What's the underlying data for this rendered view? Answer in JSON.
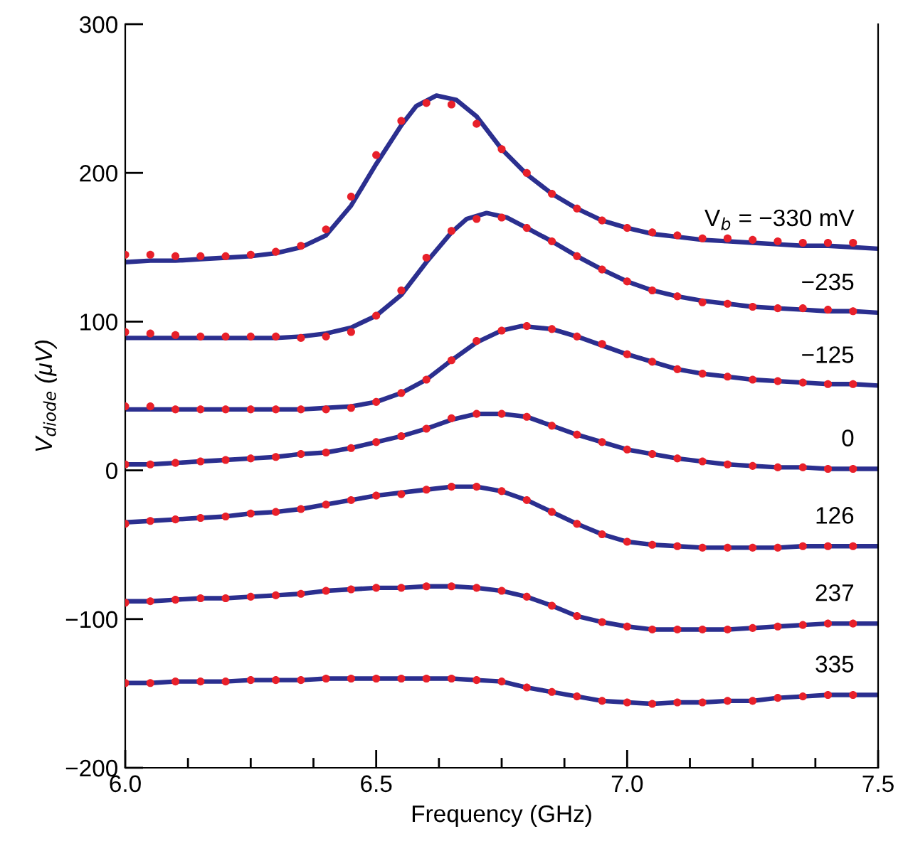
{
  "chart_data": {
    "type": "scatter",
    "xlabel": "Frequency (GHz)",
    "ylabel": "V$_{diode}$ (μV)",
    "xlim": [
      6.0,
      7.5
    ],
    "ylim": [
      -200,
      300
    ],
    "xticks": [
      {
        "value": 6.0,
        "label": "6.0"
      },
      {
        "value": 6.125,
        "label": null
      },
      {
        "value": 6.25,
        "label": null
      },
      {
        "value": 6.375,
        "label": null
      },
      {
        "value": 6.5,
        "label": "6.5"
      },
      {
        "value": 6.625,
        "label": null
      },
      {
        "value": 6.75,
        "label": null
      },
      {
        "value": 6.875,
        "label": null
      },
      {
        "value": 7.0,
        "label": "7.0"
      },
      {
        "value": 7.125,
        "label": null
      },
      {
        "value": 7.25,
        "label": null
      },
      {
        "value": 7.375,
        "label": null
      },
      {
        "value": 7.5,
        "label": "7.5"
      }
    ],
    "yticks": [
      {
        "value": -200,
        "label": "−200"
      },
      {
        "value": -100,
        "label": "−100"
      },
      0,
      100,
      200,
      300
    ],
    "grid": false,
    "legend": false,
    "marker": "circle",
    "x": [
      6.0,
      6.05,
      6.1,
      6.15,
      6.2,
      6.25,
      6.3,
      6.35,
      6.4,
      6.45,
      6.5,
      6.55,
      6.6,
      6.65,
      6.7,
      6.75,
      6.8,
      6.85,
      6.9,
      6.95,
      7.0,
      7.05,
      7.1,
      7.15,
      7.2,
      7.25,
      7.3,
      7.35,
      7.4,
      7.45
    ],
    "series": [
      {
        "color": "#e8202a",
        "values": [
          145,
          145,
          144,
          144,
          144,
          145,
          147,
          151,
          162,
          184,
          212,
          235,
          247,
          246,
          233,
          216,
          200,
          186,
          176,
          168,
          163,
          160,
          158,
          156,
          156,
          155,
          154,
          153,
          153,
          153
        ]
      },
      {
        "color": "#e8202a",
        "values": [
          93,
          92,
          91,
          90,
          90,
          90,
          90,
          89,
          90,
          93,
          104,
          121,
          143,
          161,
          169,
          170,
          163,
          154,
          144,
          135,
          127,
          121,
          117,
          113,
          112,
          110,
          109,
          109,
          108,
          107
        ]
      },
      {
        "color": "#e8202a",
        "values": [
          43,
          43,
          41,
          41,
          41,
          41,
          41,
          41,
          41,
          42,
          46,
          52,
          61,
          74,
          87,
          94,
          97,
          95,
          90,
          85,
          78,
          73,
          68,
          65,
          63,
          61,
          60,
          59,
          58,
          58
        ]
      },
      {
        "color": "#e8202a",
        "values": [
          4,
          4,
          5,
          6,
          7,
          8,
          9,
          11,
          12,
          15,
          19,
          23,
          28,
          35,
          38,
          38,
          36,
          30,
          24,
          19,
          14,
          11,
          8,
          6,
          4,
          3,
          2,
          2,
          1,
          1
        ]
      },
      {
        "color": "#e8202a",
        "values": [
          -36,
          -34,
          -33,
          -32,
          -31,
          -29,
          -28,
          -26,
          -23,
          -20,
          -17,
          -16,
          -13,
          -11,
          -11,
          -14,
          -20,
          -28,
          -36,
          -43,
          -48,
          -50,
          -51,
          -52,
          -52,
          -52,
          -52,
          -51,
          -51,
          -51
        ]
      },
      {
        "color": "#e8202a",
        "values": [
          -89,
          -88,
          -87,
          -86,
          -86,
          -85,
          -84,
          -83,
          -81,
          -80,
          -79,
          -79,
          -78,
          -78,
          -79,
          -81,
          -85,
          -91,
          -98,
          -102,
          -105,
          -107,
          -107,
          -107,
          -107,
          -106,
          -105,
          -104,
          -103,
          -103
        ]
      },
      {
        "color": "#e8202a",
        "values": [
          -143,
          -143,
          -142,
          -142,
          -142,
          -141,
          -141,
          -141,
          -140,
          -140,
          -140,
          -140,
          -140,
          -140,
          -141,
          -142,
          -146,
          -149,
          -152,
          -155,
          -156,
          -157,
          -156,
          -156,
          -155,
          -155,
          -153,
          -152,
          -151,
          -151
        ]
      },
      {
        "type": "line",
        "marker": "none",
        "name": "V$_{b}$ = −330 mV",
        "color": "#2b2f8f",
        "x": [
          6.0,
          6.05,
          6.1,
          6.15,
          6.2,
          6.25,
          6.3,
          6.35,
          6.4,
          6.45,
          6.5,
          6.55,
          6.58,
          6.62,
          6.66,
          6.7,
          6.75,
          6.8,
          6.85,
          6.9,
          6.95,
          7.0,
          7.05,
          7.1,
          7.15,
          7.2,
          7.25,
          7.3,
          7.35,
          7.4,
          7.45,
          7.5
        ],
        "values": [
          140,
          141,
          141,
          142,
          143,
          144,
          146,
          150,
          158,
          178,
          206,
          232,
          245,
          252,
          249,
          238,
          216,
          199,
          186,
          176,
          168,
          163,
          159,
          157,
          155,
          154,
          153,
          152,
          151,
          151,
          150,
          149
        ]
      },
      {
        "type": "line",
        "marker": "none",
        "name": "−235",
        "color": "#2b2f8f",
        "x": [
          6.0,
          6.05,
          6.1,
          6.15,
          6.2,
          6.25,
          6.3,
          6.35,
          6.4,
          6.45,
          6.5,
          6.55,
          6.6,
          6.65,
          6.68,
          6.72,
          6.76,
          6.8,
          6.85,
          6.9,
          6.95,
          7.0,
          7.05,
          7.1,
          7.15,
          7.2,
          7.25,
          7.3,
          7.35,
          7.4,
          7.45,
          7.5
        ],
        "values": [
          89,
          89,
          89,
          89,
          89,
          89,
          89,
          90,
          92,
          96,
          104,
          118,
          140,
          160,
          169,
          173,
          170,
          163,
          154,
          144,
          135,
          127,
          121,
          117,
          114,
          112,
          110,
          109,
          108,
          107,
          107,
          106
        ]
      },
      {
        "type": "line",
        "marker": "none",
        "name": "−125",
        "color": "#2b2f8f",
        "x": [
          6.0,
          6.05,
          6.1,
          6.15,
          6.2,
          6.25,
          6.3,
          6.35,
          6.4,
          6.45,
          6.5,
          6.55,
          6.6,
          6.65,
          6.7,
          6.75,
          6.79,
          6.85,
          6.9,
          6.95,
          7.0,
          7.05,
          7.1,
          7.15,
          7.2,
          7.25,
          7.3,
          7.35,
          7.4,
          7.45,
          7.5
        ],
        "values": [
          41,
          41,
          41,
          41,
          41,
          41,
          41,
          41,
          42,
          43,
          46,
          52,
          61,
          74,
          86,
          94,
          97,
          95,
          90,
          84,
          78,
          73,
          68,
          65,
          63,
          61,
          60,
          59,
          58,
          58,
          57
        ]
      },
      {
        "type": "line",
        "marker": "none",
        "name": "0",
        "color": "#2b2f8f",
        "x": [
          6.0,
          6.05,
          6.1,
          6.15,
          6.2,
          6.25,
          6.3,
          6.35,
          6.4,
          6.45,
          6.5,
          6.55,
          6.6,
          6.65,
          6.7,
          6.75,
          6.8,
          6.85,
          6.9,
          6.95,
          7.0,
          7.05,
          7.1,
          7.15,
          7.2,
          7.25,
          7.3,
          7.35,
          7.4,
          7.45,
          7.5
        ],
        "values": [
          4,
          4,
          5,
          6,
          7,
          8,
          9,
          11,
          12,
          15,
          19,
          23,
          28,
          34,
          38,
          38,
          36,
          30,
          24,
          19,
          14,
          11,
          8,
          6,
          4,
          3,
          2,
          2,
          1,
          1,
          1
        ]
      },
      {
        "type": "line",
        "marker": "none",
        "name": "126",
        "color": "#2b2f8f",
        "x": [
          6.0,
          6.05,
          6.1,
          6.15,
          6.2,
          6.25,
          6.3,
          6.35,
          6.4,
          6.45,
          6.5,
          6.55,
          6.6,
          6.65,
          6.7,
          6.75,
          6.8,
          6.85,
          6.9,
          6.95,
          7.0,
          7.05,
          7.1,
          7.15,
          7.2,
          7.25,
          7.3,
          7.35,
          7.4,
          7.45,
          7.5
        ],
        "values": [
          -35,
          -34,
          -33,
          -32,
          -31,
          -29,
          -28,
          -26,
          -23,
          -20,
          -17,
          -15,
          -13,
          -11,
          -11,
          -14,
          -20,
          -28,
          -36,
          -43,
          -48,
          -50,
          -51,
          -52,
          -52,
          -52,
          -52,
          -51,
          -51,
          -51,
          -51
        ]
      },
      {
        "type": "line",
        "marker": "none",
        "name": "237",
        "color": "#2b2f8f",
        "x": [
          6.0,
          6.05,
          6.1,
          6.15,
          6.2,
          6.25,
          6.3,
          6.35,
          6.4,
          6.45,
          6.5,
          6.55,
          6.6,
          6.65,
          6.7,
          6.75,
          6.8,
          6.85,
          6.9,
          6.95,
          7.0,
          7.05,
          7.1,
          7.15,
          7.2,
          7.25,
          7.3,
          7.35,
          7.4,
          7.45,
          7.5
        ],
        "values": [
          -88,
          -88,
          -87,
          -86,
          -86,
          -85,
          -84,
          -83,
          -81,
          -80,
          -79,
          -79,
          -78,
          -78,
          -79,
          -81,
          -85,
          -91,
          -98,
          -102,
          -105,
          -107,
          -107,
          -107,
          -107,
          -106,
          -105,
          -104,
          -103,
          -103,
          -103
        ]
      },
      {
        "type": "line",
        "marker": "none",
        "name": "335",
        "color": "#2b2f8f",
        "x": [
          6.0,
          6.05,
          6.1,
          6.15,
          6.2,
          6.25,
          6.3,
          6.35,
          6.4,
          6.45,
          6.5,
          6.55,
          6.6,
          6.65,
          6.7,
          6.75,
          6.8,
          6.85,
          6.9,
          6.95,
          7.0,
          7.05,
          7.1,
          7.15,
          7.2,
          7.25,
          7.3,
          7.35,
          7.4,
          7.45,
          7.5
        ],
        "values": [
          -143,
          -143,
          -142,
          -142,
          -142,
          -141,
          -141,
          -141,
          -140,
          -140,
          -140,
          -140,
          -140,
          -140,
          -141,
          -142,
          -146,
          -149,
          -152,
          -155,
          -156,
          -157,
          -156,
          -156,
          -155,
          -155,
          -153,
          -152,
          -151,
          -151,
          -151
        ]
      }
    ]
  }
}
